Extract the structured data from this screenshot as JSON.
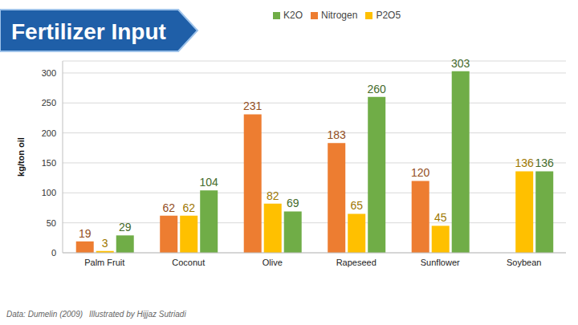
{
  "chart_data": {
    "type": "bar",
    "title": "Fertilizer Input",
    "y_label": "kg/ton oil",
    "source": "Data: Dumelin (2009)",
    "credit": "Illustrated by Hijjaz Sutriadi",
    "categories": [
      "Palm Fruit",
      "Coconut",
      "Olive",
      "Rapeseed",
      "Sunflower",
      "Soybean"
    ],
    "series": [
      {
        "name": "Nitrogen",
        "color": "#ED7D31",
        "values": [
          19,
          62,
          231,
          183,
          120,
          null
        ]
      },
      {
        "name": "P2O5",
        "color": "#FFC000",
        "values": [
          3,
          62,
          82,
          65,
          45,
          136
        ]
      },
      {
        "name": "K2O",
        "color": "#70AD47",
        "values": [
          29,
          104,
          69,
          260,
          303,
          136
        ]
      }
    ],
    "ylim": [
      0,
      320
    ],
    "yticks": [
      0,
      50,
      100,
      150,
      200,
      250,
      300
    ],
    "grid": true,
    "legend": "top",
    "data_labels": true
  }
}
